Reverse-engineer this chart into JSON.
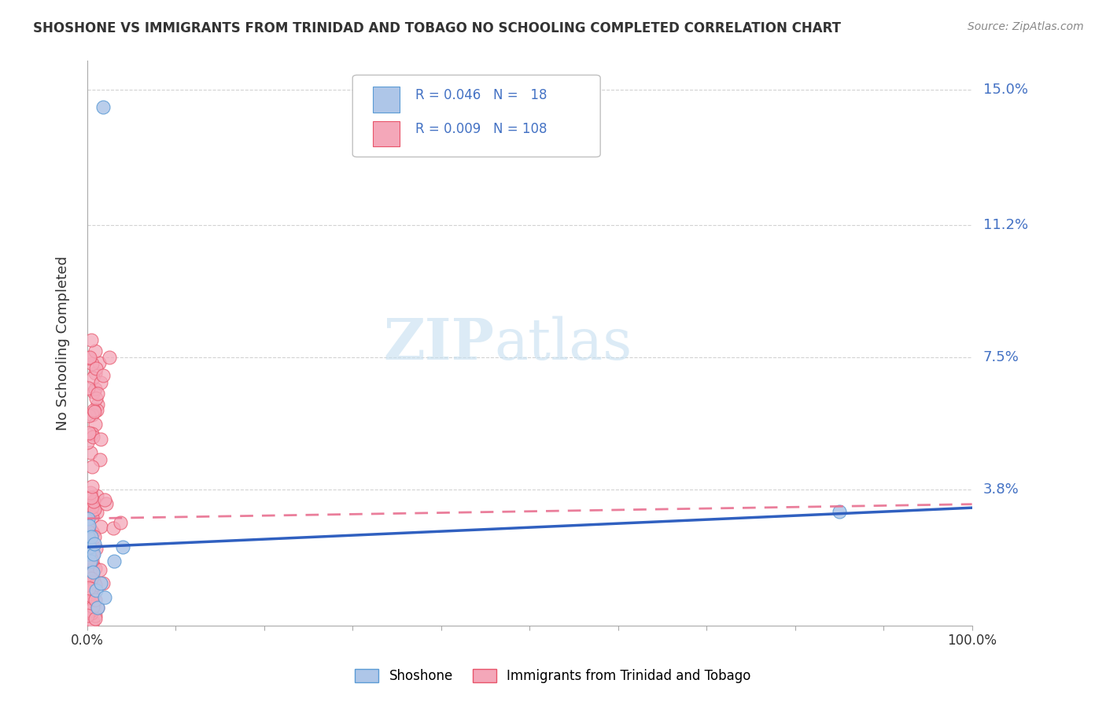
{
  "title": "SHOSHONE VS IMMIGRANTS FROM TRINIDAD AND TOBAGO NO SCHOOLING COMPLETED CORRELATION CHART",
  "source": "Source: ZipAtlas.com",
  "ylabel": "No Schooling Completed",
  "xlim": [
    0.0,
    1.0
  ],
  "ylim": [
    0.0,
    0.158
  ],
  "yticks": [
    0.0,
    0.038,
    0.075,
    0.112,
    0.15
  ],
  "ytick_labels": [
    "",
    "3.8%",
    "7.5%",
    "11.2%",
    "15.0%"
  ],
  "grid_color": "#c8c8c8",
  "background_color": "#ffffff",
  "shoshone_color": "#aec6e8",
  "shoshone_edge_color": "#5b9bd5",
  "tt_color": "#f4a7b9",
  "tt_edge_color": "#e8546a",
  "blue_line_color": "#3060c0",
  "pink_line_color": "#e87090",
  "shoshone_R": 0.046,
  "shoshone_N": 18,
  "tt_R": 0.009,
  "tt_N": 108,
  "legend_label_shoshone": "Shoshone",
  "legend_label_tt": "Immigrants from Trinidad and Tobago",
  "watermark_zip": "ZIP",
  "watermark_atlas": "atlas",
  "blue_line_x": [
    0.0,
    1.0
  ],
  "blue_line_y": [
    0.022,
    0.033
  ],
  "pink_line_x": [
    0.0,
    1.0
  ],
  "pink_line_y": [
    0.03,
    0.034
  ]
}
